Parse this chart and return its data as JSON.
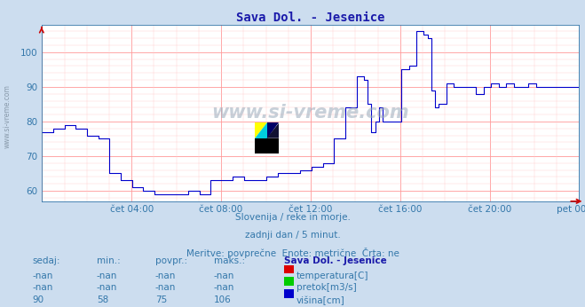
{
  "title": "Sava Dol. - Jesenice",
  "title_color": "#1a1aaa",
  "bg_color": "#ccddef",
  "plot_bg_color": "#ffffff",
  "grid_color_major": "#ff9999",
  "grid_color_minor": "#ffcccc",
  "line_color": "#0000cc",
  "ylim": [
    57,
    108
  ],
  "yticks": [
    60,
    70,
    80,
    90,
    100
  ],
  "xlabel_color": "#3377aa",
  "xtick_labels": [
    "čet 04:00",
    "čet 08:00",
    "čet 12:00",
    "čet 16:00",
    "čet 20:00",
    "pet 00:00"
  ],
  "watermark_text": "www.si-vreme.com",
  "watermark_color": "#99aabb",
  "subtitle_lines": [
    "Slovenija / reke in morje.",
    "zadnji dan / 5 minut.",
    "Meritve: povprečne  Enote: metrične  Črta: ne"
  ],
  "subtitle_color": "#3377aa",
  "table_header": [
    "sedaj:",
    "min.:",
    "povpr.:",
    "maks.:",
    "Sava Dol. - Jesenice"
  ],
  "table_rows": [
    [
      "-nan",
      "-nan",
      "-nan",
      "-nan",
      "temperatura[C]",
      "#dd0000"
    ],
    [
      "-nan",
      "-nan",
      "-nan",
      "-nan",
      "pretok[m3/s]",
      "#00cc00"
    ],
    [
      "90",
      "58",
      "75",
      "106",
      "višina[cm]",
      "#0000cc"
    ]
  ],
  "n_points": 288,
  "arrow_color": "#cc0000",
  "breakpoints": [
    [
      0,
      77
    ],
    [
      6,
      78
    ],
    [
      12,
      79
    ],
    [
      18,
      78
    ],
    [
      24,
      76
    ],
    [
      30,
      75
    ],
    [
      36,
      65
    ],
    [
      42,
      63
    ],
    [
      48,
      61
    ],
    [
      54,
      60
    ],
    [
      60,
      59
    ],
    [
      66,
      59
    ],
    [
      72,
      59
    ],
    [
      78,
      60
    ],
    [
      84,
      59
    ],
    [
      90,
      63
    ],
    [
      96,
      63
    ],
    [
      102,
      64
    ],
    [
      108,
      63
    ],
    [
      114,
      63
    ],
    [
      120,
      64
    ],
    [
      126,
      65
    ],
    [
      132,
      65
    ],
    [
      138,
      66
    ],
    [
      144,
      67
    ],
    [
      150,
      68
    ],
    [
      156,
      75
    ],
    [
      162,
      84
    ],
    [
      168,
      93
    ],
    [
      172,
      92
    ],
    [
      174,
      85
    ],
    [
      176,
      77
    ],
    [
      178,
      80
    ],
    [
      180,
      84
    ],
    [
      182,
      80
    ],
    [
      186,
      80
    ],
    [
      192,
      95
    ],
    [
      196,
      96
    ],
    [
      200,
      106
    ],
    [
      204,
      105
    ],
    [
      206,
      104
    ],
    [
      208,
      89
    ],
    [
      210,
      84
    ],
    [
      212,
      85
    ],
    [
      216,
      91
    ],
    [
      220,
      90
    ],
    [
      228,
      90
    ],
    [
      232,
      88
    ],
    [
      236,
      90
    ],
    [
      240,
      91
    ],
    [
      244,
      90
    ],
    [
      248,
      91
    ],
    [
      252,
      90
    ],
    [
      256,
      90
    ],
    [
      260,
      91
    ],
    [
      264,
      90
    ],
    [
      268,
      90
    ],
    [
      272,
      90
    ],
    [
      276,
      90
    ],
    [
      280,
      90
    ],
    [
      284,
      90
    ],
    [
      287,
      90
    ]
  ]
}
